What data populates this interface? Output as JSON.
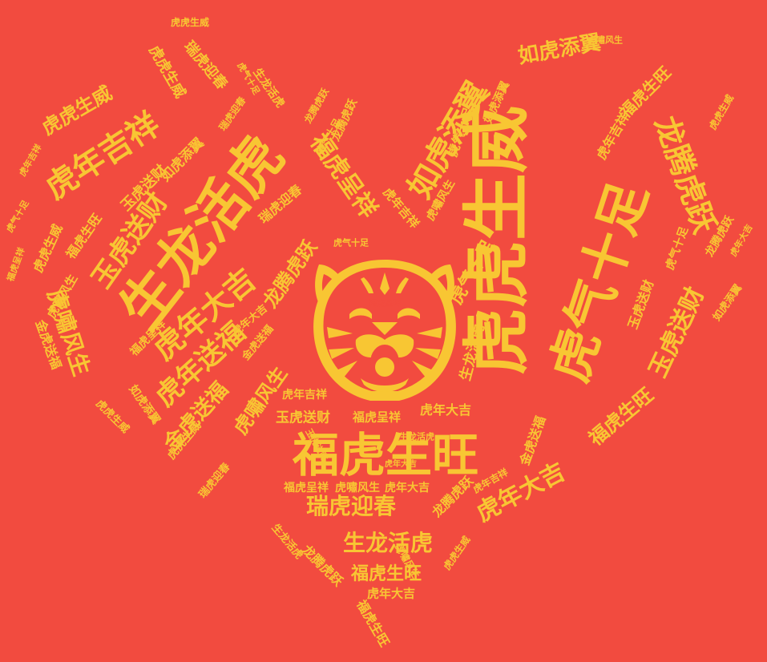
{
  "colors": {
    "background": "#F24B3F",
    "text": "#F8C633"
  },
  "emblem": {
    "icon": "tiger-face-icon",
    "label": "福虎呈祥"
  },
  "words": [
    "虎虎生威",
    "虎气十足",
    "福虎生旺",
    "生龙活虎",
    "虎年吉祥",
    "如虎添翼",
    "龙腾虎跃",
    "玉虎送财",
    "虎年大吉",
    "虎年送福",
    "瑞虎迎春",
    "虎嘯风生",
    "金虎送福",
    "福虎呈祥",
    "虎啸风生"
  ]
}
